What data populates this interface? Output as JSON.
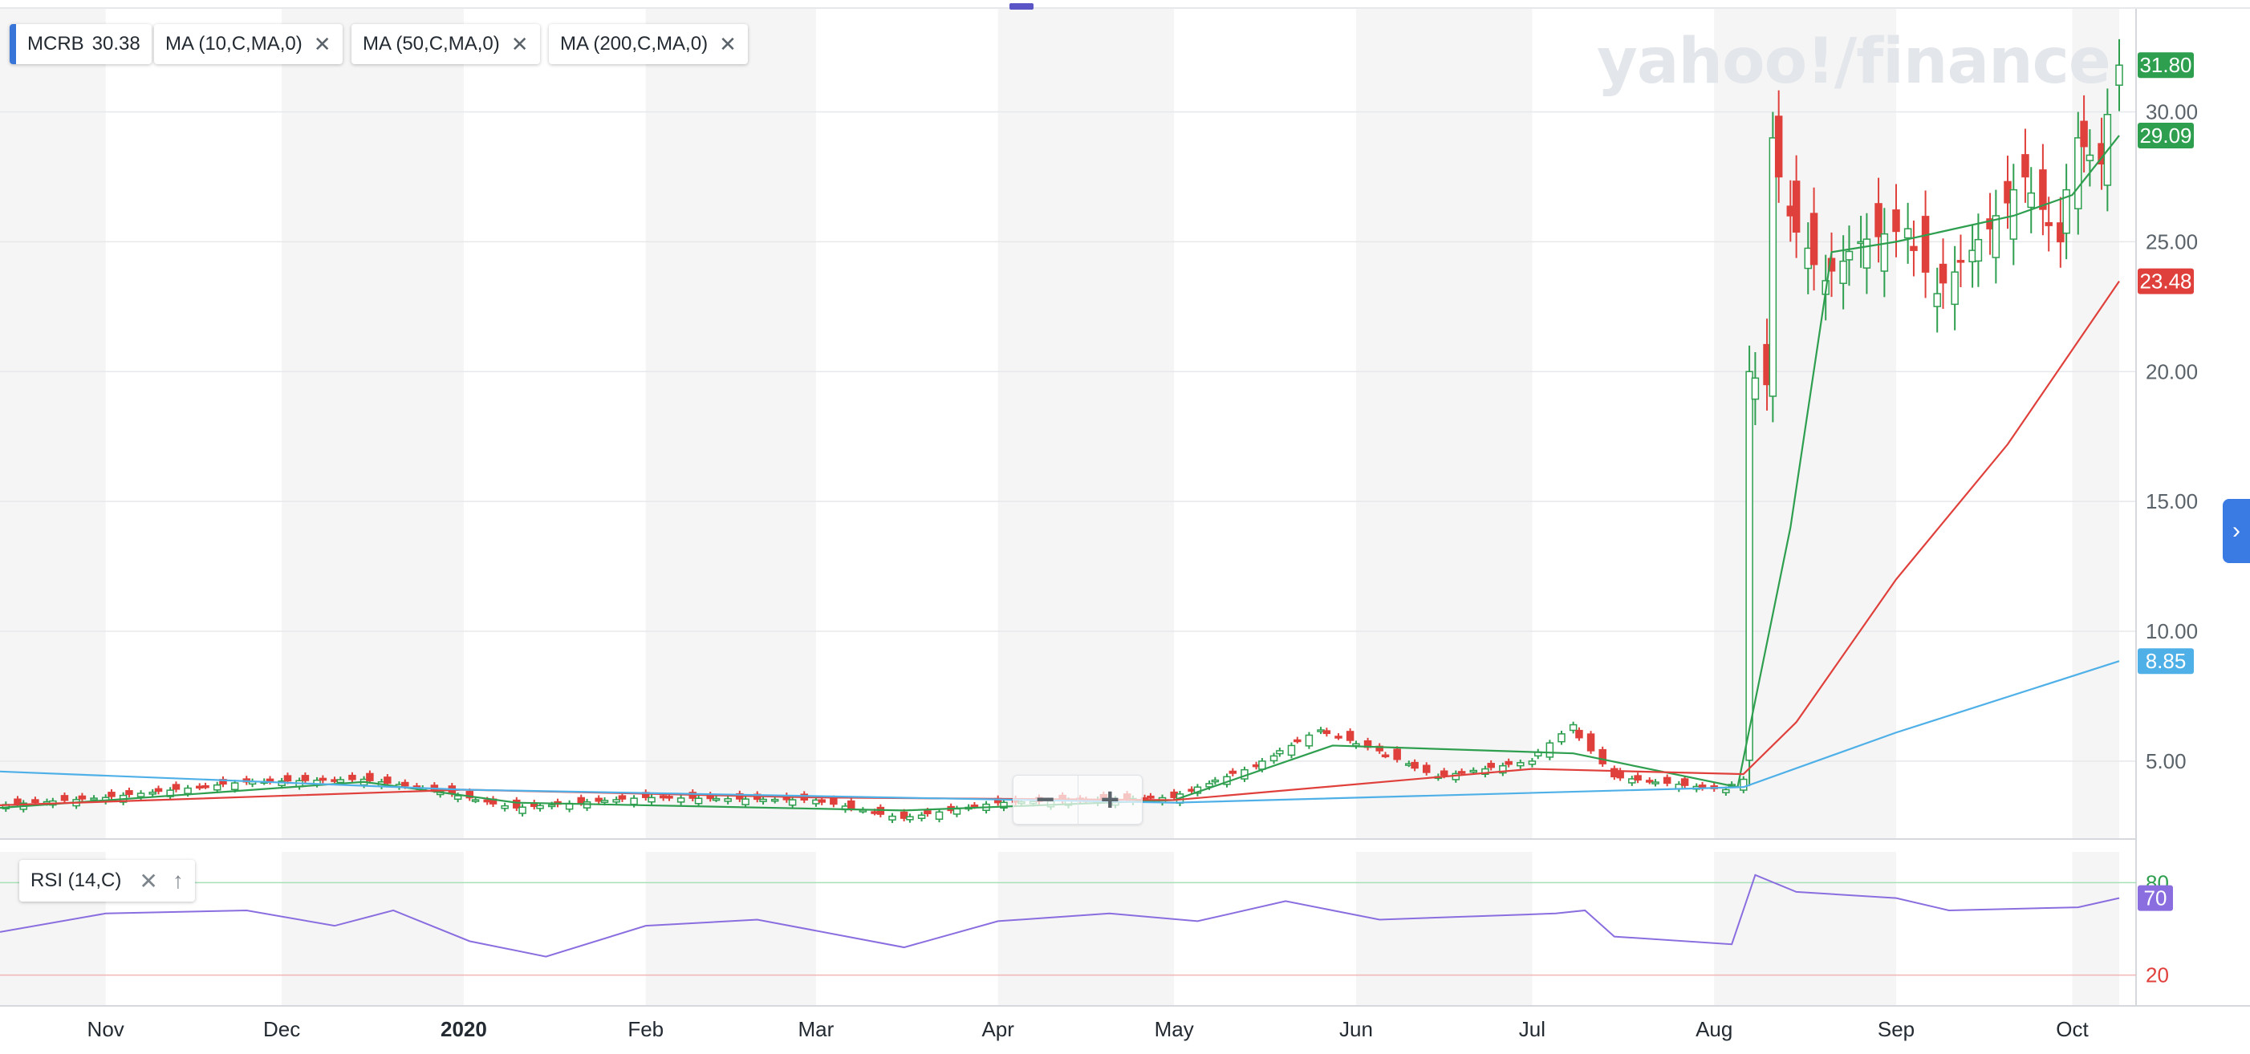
{
  "watermark": "yahoo!/finance",
  "legend": {
    "symbol": "MCRB",
    "symbol_value": "30.38",
    "studies": [
      {
        "label": "MA (10,C,MA,0)",
        "color": "#2e9e4f"
      },
      {
        "label": "MA (50,C,MA,0)",
        "color": "#e0403b"
      },
      {
        "label": "MA (200,C,MA,0)",
        "color": "#4fb0e8"
      }
    ],
    "close_icon": "close-icon"
  },
  "rsi": {
    "label": "RSI (14,C)",
    "close_icon": "close-icon",
    "up_icon": "arrow-up-icon"
  },
  "zoom": {
    "minus": "−",
    "plus": "+"
  },
  "colors": {
    "up": "#2e9e4f",
    "down": "#e0403b",
    "ma10": "#2e9e4f",
    "ma50": "#e0403b",
    "ma200": "#4fb0e8",
    "rsi": "#8a6ee0",
    "accent": "#3a7ae3"
  },
  "chart_data": [
    {
      "type": "candlestick",
      "title": "",
      "x_tick_labels": [
        "Nov",
        "Dec",
        "2020",
        "Feb",
        "Mar",
        "Apr",
        "May",
        "Jun",
        "Jul",
        "Aug",
        "Sep",
        "Oct"
      ],
      "y_tick_labels": [
        "5.00",
        "10.00",
        "15.00",
        "20.00",
        "25.00",
        "30.00"
      ],
      "ylim": [
        2.0,
        34.0
      ],
      "grid": true,
      "price_labels": [
        {
          "series": "close",
          "value": "31.80",
          "color": "#2e9e4f"
        },
        {
          "series": "MA 10",
          "value": "29.09",
          "color": "#2e9e4f"
        },
        {
          "series": "MA 50",
          "value": "23.48",
          "color": "#e0403b"
        },
        {
          "series": "MA 200",
          "value": "8.85",
          "color": "#4fb0e8"
        }
      ],
      "close_series": [
        {
          "date": "2019-10-14",
          "close": 3.3
        },
        {
          "date": "2019-11-01",
          "close": 3.6
        },
        {
          "date": "2019-11-25",
          "close": 4.2
        },
        {
          "date": "2019-12-15",
          "close": 4.3
        },
        {
          "date": "2019-12-27",
          "close": 3.9
        },
        {
          "date": "2020-01-10",
          "close": 3.2
        },
        {
          "date": "2020-02-01",
          "close": 3.6
        },
        {
          "date": "2020-03-01",
          "close": 3.5
        },
        {
          "date": "2020-03-16",
          "close": 2.8
        },
        {
          "date": "2020-04-01",
          "close": 3.4
        },
        {
          "date": "2020-05-01",
          "close": 3.6
        },
        {
          "date": "2020-05-15",
          "close": 4.8
        },
        {
          "date": "2020-05-26",
          "close": 6.2
        },
        {
          "date": "2020-06-05",
          "close": 5.4
        },
        {
          "date": "2020-06-15",
          "close": 4.4
        },
        {
          "date": "2020-07-01",
          "close": 5.0
        },
        {
          "date": "2020-07-08",
          "close": 6.4
        },
        {
          "date": "2020-07-15",
          "close": 4.4
        },
        {
          "date": "2020-08-03",
          "close": 3.9
        },
        {
          "date": "2020-08-06",
          "close": 4.3
        },
        {
          "date": "2020-08-07",
          "close": 20.0
        },
        {
          "date": "2020-08-10",
          "close": 19.5
        },
        {
          "date": "2020-08-11",
          "close": 29.0
        },
        {
          "date": "2020-08-14",
          "close": 26.0
        },
        {
          "date": "2020-08-20",
          "close": 23.5
        },
        {
          "date": "2020-08-26",
          "close": 25.0
        },
        {
          "date": "2020-09-03",
          "close": 25.5
        },
        {
          "date": "2020-09-08",
          "close": 23.0
        },
        {
          "date": "2020-09-17",
          "close": 25.5
        },
        {
          "date": "2020-09-23",
          "close": 27.5
        },
        {
          "date": "2020-09-29",
          "close": 25.0
        },
        {
          "date": "2020-10-02",
          "close": 29.0
        },
        {
          "date": "2020-10-06",
          "close": 28.0
        },
        {
          "date": "2020-10-09",
          "close": 31.8
        }
      ],
      "series": [
        {
          "name": "MA (10,C,MA,0)",
          "values": [
            {
              "date": "2019-10-14",
              "v": 3.2
            },
            {
              "date": "2019-12-15",
              "v": 4.2
            },
            {
              "date": "2020-01-10",
              "v": 3.4
            },
            {
              "date": "2020-03-16",
              "v": 3.1
            },
            {
              "date": "2020-05-01",
              "v": 3.5
            },
            {
              "date": "2020-05-28",
              "v": 5.6
            },
            {
              "date": "2020-07-08",
              "v": 5.3
            },
            {
              "date": "2020-08-05",
              "v": 4.0
            },
            {
              "date": "2020-08-14",
              "v": 14.0
            },
            {
              "date": "2020-08-21",
              "v": 24.6
            },
            {
              "date": "2020-09-01",
              "v": 25.0
            },
            {
              "date": "2020-09-21",
              "v": 26.0
            },
            {
              "date": "2020-10-01",
              "v": 26.8
            },
            {
              "date": "2020-10-09",
              "v": 29.09
            }
          ]
        },
        {
          "name": "MA (50,C,MA,0)",
          "values": [
            {
              "date": "2019-10-14",
              "v": 3.3
            },
            {
              "date": "2020-01-01",
              "v": 3.9
            },
            {
              "date": "2020-03-01",
              "v": 3.6
            },
            {
              "date": "2020-05-01",
              "v": 3.5
            },
            {
              "date": "2020-07-01",
              "v": 4.7
            },
            {
              "date": "2020-08-06",
              "v": 4.5
            },
            {
              "date": "2020-08-15",
              "v": 6.5
            },
            {
              "date": "2020-09-01",
              "v": 12.0
            },
            {
              "date": "2020-09-20",
              "v": 17.2
            },
            {
              "date": "2020-10-09",
              "v": 23.48
            }
          ]
        },
        {
          "name": "MA (200,C,MA,0)",
          "values": [
            {
              "date": "2019-10-14",
              "v": 4.6
            },
            {
              "date": "2020-01-01",
              "v": 3.9
            },
            {
              "date": "2020-05-01",
              "v": 3.4
            },
            {
              "date": "2020-08-06",
              "v": 4.0
            },
            {
              "date": "2020-09-01",
              "v": 6.1
            },
            {
              "date": "2020-10-09",
              "v": 8.85
            }
          ]
        }
      ]
    },
    {
      "type": "line",
      "title": "RSI (14,C)",
      "ylim": [
        0,
        100
      ],
      "y_tick_labels": [
        "20",
        "80"
      ],
      "bands": [
        20,
        80
      ],
      "current_value": "70",
      "series": [
        {
          "name": "RSI (14,C)",
          "values": [
            {
              "date": "2019-10-14",
              "v": 48
            },
            {
              "date": "2019-11-01",
              "v": 60
            },
            {
              "date": "2019-11-25",
              "v": 62
            },
            {
              "date": "2019-12-10",
              "v": 52
            },
            {
              "date": "2019-12-20",
              "v": 62
            },
            {
              "date": "2020-01-02",
              "v": 42
            },
            {
              "date": "2020-01-15",
              "v": 32
            },
            {
              "date": "2020-02-01",
              "v": 52
            },
            {
              "date": "2020-02-20",
              "v": 56
            },
            {
              "date": "2020-03-16",
              "v": 38
            },
            {
              "date": "2020-04-01",
              "v": 55
            },
            {
              "date": "2020-04-20",
              "v": 60
            },
            {
              "date": "2020-05-05",
              "v": 55
            },
            {
              "date": "2020-05-20",
              "v": 68
            },
            {
              "date": "2020-06-05",
              "v": 56
            },
            {
              "date": "2020-07-05",
              "v": 60
            },
            {
              "date": "2020-07-10",
              "v": 62
            },
            {
              "date": "2020-07-15",
              "v": 45
            },
            {
              "date": "2020-08-04",
              "v": 40
            },
            {
              "date": "2020-08-08",
              "v": 85
            },
            {
              "date": "2020-08-15",
              "v": 74
            },
            {
              "date": "2020-09-01",
              "v": 70
            },
            {
              "date": "2020-09-10",
              "v": 62
            },
            {
              "date": "2020-10-02",
              "v": 64
            },
            {
              "date": "2020-10-09",
              "v": 70
            }
          ]
        }
      ]
    }
  ]
}
